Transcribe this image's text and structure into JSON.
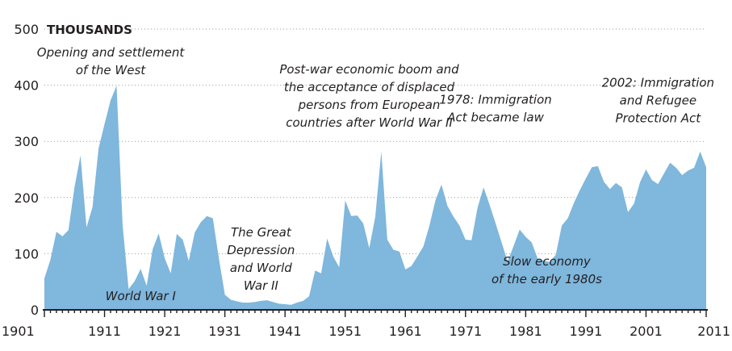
{
  "colors": {
    "area": "#7fb7dd",
    "text": "#231f20",
    "grid": "#9a9a9a"
  },
  "chart_data": {
    "type": "area",
    "units_label": "THOUSANDS",
    "xlim": [
      1901,
      2011
    ],
    "ylim": [
      0,
      500
    ],
    "y_ticks": [
      0,
      100,
      200,
      300,
      400,
      500
    ],
    "x_ticks": [
      1901,
      1911,
      1921,
      1931,
      1941,
      1951,
      1961,
      1971,
      1981,
      1991,
      2001,
      2011
    ],
    "grid": true,
    "legend": "none",
    "x": [
      1901,
      1902,
      1903,
      1904,
      1905,
      1906,
      1907,
      1908,
      1909,
      1910,
      1911,
      1912,
      1913,
      1914,
      1915,
      1916,
      1917,
      1918,
      1919,
      1920,
      1921,
      1922,
      1923,
      1924,
      1925,
      1926,
      1927,
      1928,
      1929,
      1930,
      1931,
      1932,
      1933,
      1934,
      1935,
      1936,
      1937,
      1938,
      1939,
      1940,
      1941,
      1942,
      1943,
      1944,
      1945,
      1946,
      1947,
      1948,
      1949,
      1950,
      1951,
      1952,
      1953,
      1954,
      1955,
      1956,
      1957,
      1958,
      1959,
      1960,
      1961,
      1962,
      1963,
      1964,
      1965,
      1966,
      1967,
      1968,
      1969,
      1970,
      1971,
      1972,
      1973,
      1974,
      1975,
      1976,
      1977,
      1978,
      1979,
      1980,
      1981,
      1982,
      1983,
      1984,
      1985,
      1986,
      1987,
      1988,
      1989,
      1990,
      1991,
      1992,
      1993,
      1994,
      1995,
      1996,
      1997,
      1998,
      1999,
      2000,
      2001,
      2002,
      2003,
      2004,
      2005,
      2006,
      2007,
      2008,
      2009,
      2010,
      2011
    ],
    "values": [
      56,
      89,
      139,
      131,
      142,
      218,
      275,
      147,
      183,
      287,
      331,
      373,
      399,
      151,
      37,
      51,
      73,
      43,
      108,
      136,
      92,
      65,
      135,
      125,
      87,
      138,
      156,
      167,
      163,
      92,
      27,
      18,
      15,
      13,
      13,
      14,
      16,
      17,
      14,
      11,
      10,
      9,
      13,
      16,
      24,
      70,
      65,
      127,
      95,
      76,
      195,
      167,
      168,
      154,
      110,
      166,
      282,
      125,
      107,
      104,
      72,
      78,
      95,
      113,
      150,
      195,
      223,
      185,
      166,
      150,
      125,
      124,
      182,
      218,
      187,
      154,
      120,
      86,
      114,
      143,
      130,
      120,
      91,
      88,
      85,
      98,
      150,
      163,
      190,
      213,
      234,
      254,
      256,
      228,
      215,
      226,
      218,
      174,
      189,
      227,
      250,
      231,
      224,
      243,
      262,
      253,
      240,
      248,
      253,
      282,
      254
    ],
    "annotations": [
      {
        "lines": [
          "Opening and settlement",
          "of the West"
        ],
        "x": 1912,
        "y": 451,
        "anchor": "middle"
      },
      {
        "lines": [
          "World War I"
        ],
        "x": 1917,
        "y": 17,
        "anchor": "middle"
      },
      {
        "lines": [
          "The Great",
          "Depression",
          "and World",
          "War II"
        ],
        "x": 1937,
        "y": 131,
        "anchor": "middle"
      },
      {
        "lines": [
          "Post-war economic boom and",
          "the acceptance of displaced",
          "persons from European",
          "countries after World War II"
        ],
        "x": 1955,
        "y": 421,
        "anchor": "middle"
      },
      {
        "lines": [
          "1978: Immigration",
          "Act became law"
        ],
        "x": 1976,
        "y": 367,
        "anchor": "middle"
      },
      {
        "lines": [
          "Slow economy",
          "of the early 1980s"
        ],
        "x": 1984.5,
        "y": 79,
        "anchor": "middle"
      },
      {
        "lines": [
          "2002: Immigration",
          "and Refugee",
          "Protection Act"
        ],
        "x": 2003,
        "y": 397,
        "anchor": "middle"
      }
    ]
  }
}
